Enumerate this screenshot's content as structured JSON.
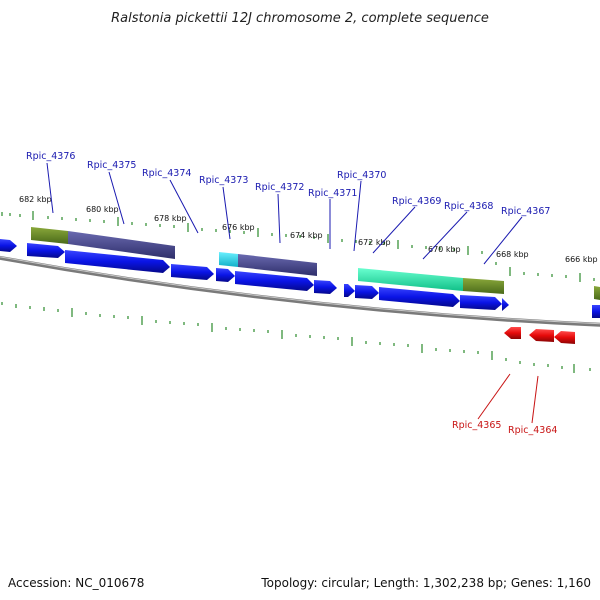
{
  "title": "Ralstonia pickettii 12J chromosome 2, complete sequence",
  "footer": {
    "accession": "Accession: NC_010678",
    "summary": "Topology: circular; Length: 1,302,238 bp; Genes: 1,160"
  },
  "scale_labels": [
    "682 kbp",
    "680 kbp",
    "678 kbp",
    "676 kbp",
    "674 kbp",
    "672 kbp",
    "670 kbp",
    "668 kbp",
    "666 kbp"
  ],
  "forward_genes": [
    "Rpic_4376",
    "Rpic_4375",
    "Rpic_4374",
    "Rpic_4373",
    "Rpic_4372",
    "Rpic_4371",
    "Rpic_4370",
    "Rpic_4369",
    "Rpic_4368",
    "Rpic_4367"
  ],
  "reverse_genes": [
    "Rpic_4365",
    "Rpic_4364"
  ],
  "colors": {
    "forward_gene": "#0a14e6",
    "reverse_gene": "#e60a0a",
    "forward_label": "#1a1ab0",
    "reverse_label": "#c81414",
    "tick": "#2a8a2a",
    "backbone": "#888888",
    "feature_olive": "#6b8a2a",
    "feature_slate": "#4a4a8a",
    "feature_cyan": "#26d0e0",
    "feature_teal": "#22e0a8"
  }
}
